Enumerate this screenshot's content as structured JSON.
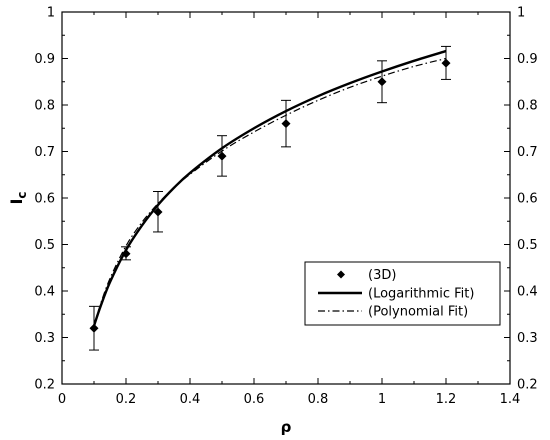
{
  "chart_data": {
    "type": "scatter",
    "xlabel": "ρ",
    "ylabel_main": "I",
    "ylabel_sub": "c",
    "xlim": [
      0,
      1.4
    ],
    "ylim": [
      0.2,
      1.0
    ],
    "xticks": [
      0,
      0.2,
      0.4,
      0.6,
      0.8,
      1,
      1.2,
      1.4
    ],
    "xtick_labels": [
      "0",
      "0.2",
      "0.4",
      "0.6",
      "0.8",
      "1",
      "1.2",
      "1.4"
    ],
    "yticks": [
      0.2,
      0.3,
      0.4,
      0.5,
      0.6,
      0.7,
      0.8,
      0.9,
      1.0
    ],
    "ytick_labels": [
      "0.2",
      "0.3",
      "0.4",
      "0.5",
      "0.6",
      "0.7",
      "0.8",
      "0.9",
      "1"
    ],
    "grid": false,
    "legend_position": "lower-right",
    "series": [
      {
        "name": "(3D)",
        "kind": "points_with_errorbars",
        "marker": "diamond",
        "x": [
          0.1,
          0.2,
          0.3,
          0.5,
          0.7,
          1.0,
          1.2
        ],
        "y": [
          0.32,
          0.48,
          0.57,
          0.69,
          0.76,
          0.85,
          0.89
        ],
        "yerr_low": [
          0.273,
          0.467,
          0.527,
          0.647,
          0.71,
          0.805,
          0.855
        ],
        "yerr_high": [
          0.367,
          0.495,
          0.614,
          0.734,
          0.81,
          0.895,
          0.926
        ]
      },
      {
        "name": "(Logarithmic Fit)",
        "kind": "line",
        "style": "solid",
        "x": [
          0.1,
          0.12,
          0.15,
          0.2,
          0.25,
          0.3,
          0.35,
          0.4,
          0.5,
          0.6,
          0.7,
          0.8,
          0.9,
          1.0,
          1.1,
          1.2
        ],
        "y": [
          0.325,
          0.366,
          0.419,
          0.488,
          0.541,
          0.585,
          0.622,
          0.654,
          0.707,
          0.75,
          0.787,
          0.819,
          0.847,
          0.872,
          0.895,
          0.916
        ]
      },
      {
        "name": "(Polynomial Fit)",
        "kind": "line",
        "style": "dashdot",
        "x": [
          0.1,
          0.12,
          0.15,
          0.2,
          0.25,
          0.3,
          0.35,
          0.4,
          0.5,
          0.6,
          0.7,
          0.8,
          0.9,
          1.0,
          1.1,
          1.2
        ],
        "y": [
          0.325,
          0.371,
          0.427,
          0.497,
          0.548,
          0.588,
          0.622,
          0.651,
          0.701,
          0.742,
          0.778,
          0.81,
          0.838,
          0.862,
          0.883,
          0.9
        ]
      }
    ]
  }
}
